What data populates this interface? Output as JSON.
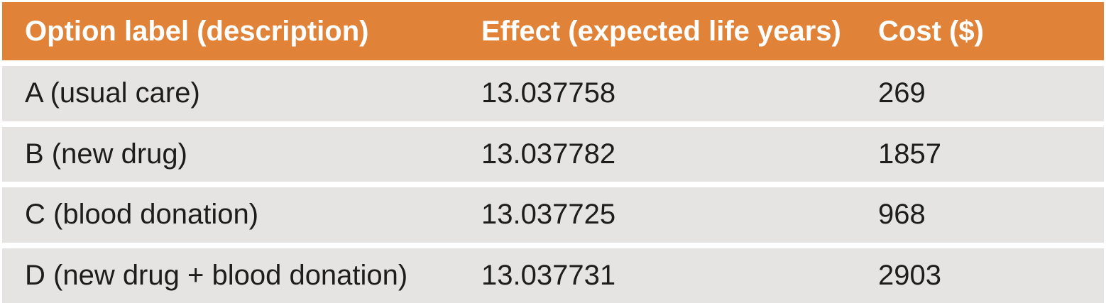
{
  "chart_data": {
    "type": "table",
    "columns": [
      "Option label (description)",
      "Effect (expected life years)",
      "Cost ($)"
    ],
    "rows": [
      [
        "A (usual care)",
        "13.037758",
        "269"
      ],
      [
        "B (new drug)",
        "13.037782",
        "1857"
      ],
      [
        "C (blood donation)",
        "13.037725",
        "968"
      ],
      [
        "D (new drug + blood donation)",
        "13.037731",
        "2903"
      ]
    ]
  },
  "colors": {
    "header_bg": "#E08338",
    "header_text": "#FFFFFF",
    "row_bg": "#E5E4E3",
    "row_text": "#1D1D1B",
    "page_bg": "#FFFFFF"
  }
}
